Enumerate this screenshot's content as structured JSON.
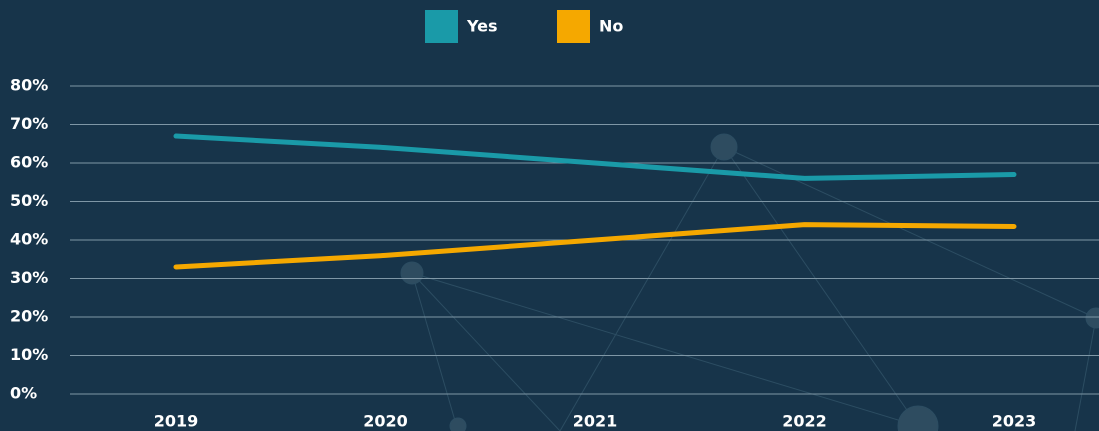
{
  "chart_data": {
    "type": "line",
    "categories": [
      "2019",
      "2020",
      "2021",
      "2022",
      "2023"
    ],
    "series": [
      {
        "name": "Yes",
        "color": "#1a9aa8",
        "values": [
          67,
          64,
          60,
          56,
          57
        ]
      },
      {
        "name": "No",
        "color": "#f5a800",
        "values": [
          33,
          36,
          40,
          44,
          43.5
        ]
      }
    ],
    "ylim": [
      0,
      80
    ],
    "yticks": [
      {
        "value": 0,
        "label": "0%"
      },
      {
        "value": 10,
        "label": "10%"
      },
      {
        "value": 20,
        "label": "20%"
      },
      {
        "value": 30,
        "label": "30%"
      },
      {
        "value": 40,
        "label": "40%"
      },
      {
        "value": 50,
        "label": "50%"
      },
      {
        "value": 60,
        "label": "60%"
      },
      {
        "value": 70,
        "label": "70%"
      },
      {
        "value": 80,
        "label": "80%"
      }
    ],
    "grid": true
  }
}
